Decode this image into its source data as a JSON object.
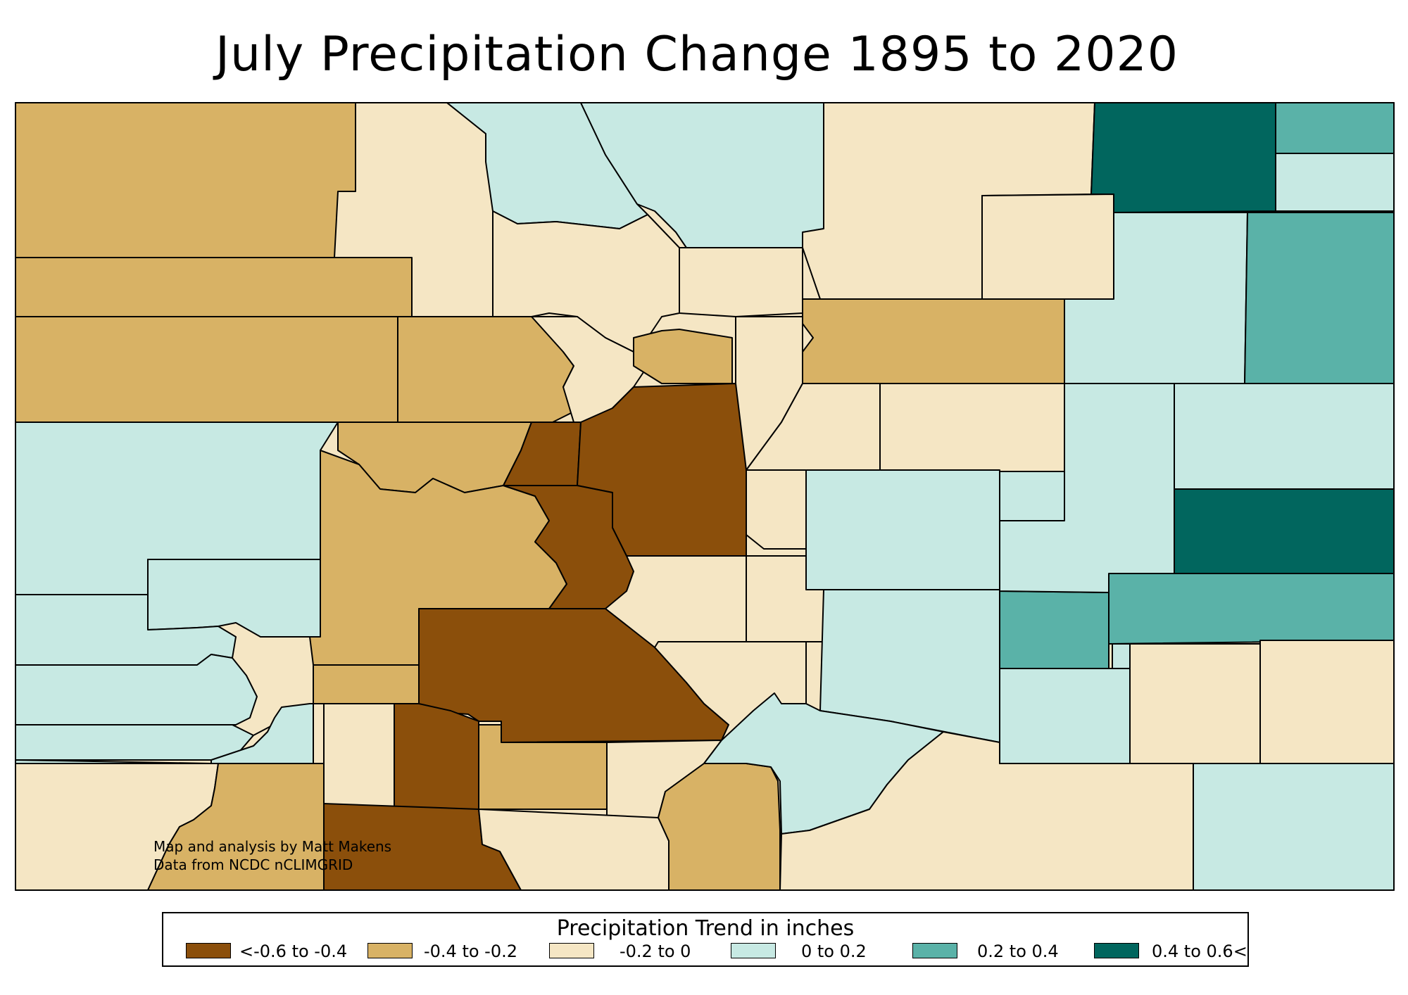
{
  "title": "July Precipitation Change 1895 to 2020",
  "credit": {
    "line1": "Map and analysis by Matt Makens",
    "line2": "Data from NCDC nCLIMGRID"
  },
  "legend": {
    "title": "Precipitation Trend in inches",
    "items": [
      {
        "label": "<-0.6 to -0.4",
        "color": "#8b4f0b"
      },
      {
        "label": "-0.4 to -0.2",
        "color": "#d8b265"
      },
      {
        "label": "-0.2 to 0",
        "color": "#f5e6c4"
      },
      {
        "label": "0 to 0.2",
        "color": "#c7e9e3"
      },
      {
        "label": "0.2 to 0.4",
        "color": "#5ab2a8"
      },
      {
        "label": "0.4 to 0.6<",
        "color": "#01665e"
      }
    ]
  }
}
